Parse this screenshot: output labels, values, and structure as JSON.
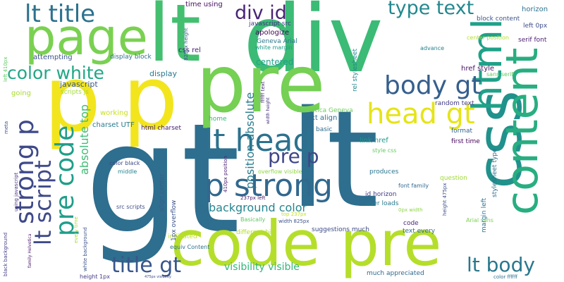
{
  "words": [
    {
      "text": "gt",
      "weight": 1.0,
      "color": "#2e6e8e"
    },
    {
      "text": "lt",
      "weight": 0.97,
      "color": "#2e6e8e"
    },
    {
      "text": "div",
      "weight": 0.9,
      "color": "#3bbb75"
    },
    {
      "text": "p",
      "weight": 0.85,
      "color": "#f2e51d"
    },
    {
      "text": "p",
      "weight": 0.82,
      "color": "#f2e51d"
    },
    {
      "text": "pre",
      "weight": 0.78,
      "color": "#75d054"
    },
    {
      "text": "lt",
      "weight": 0.75,
      "color": "#44bf70"
    },
    {
      "text": "code pre",
      "weight": 0.7,
      "color": "#b5de2b"
    },
    {
      "text": "css",
      "weight": 0.68,
      "color": "#21918c"
    },
    {
      "text": "page",
      "weight": 0.6,
      "color": "#7ad151"
    },
    {
      "text": "html",
      "weight": 0.55,
      "color": "#1fa188"
    },
    {
      "text": "content",
      "weight": 0.52,
      "color": "#28ae80"
    },
    {
      "text": "lt head",
      "weight": 0.45,
      "color": "#2c728e"
    },
    {
      "text": "p strong",
      "weight": 0.45,
      "color": "#31688e"
    },
    {
      "text": "head gt",
      "weight": 0.4,
      "color": "#e5e419"
    },
    {
      "text": "body gt",
      "weight": 0.38,
      "color": "#355f8d"
    },
    {
      "text": "lt title",
      "weight": 0.36,
      "color": "#2c728e"
    },
    {
      "text": "strong p",
      "weight": 0.36,
      "color": "#3e4989"
    },
    {
      "text": "pre code",
      "weight": 0.34,
      "color": "#1f9e89"
    },
    {
      "text": "lt script",
      "weight": 0.3,
      "color": "#3e4a89"
    },
    {
      "text": "title gt",
      "weight": 0.3,
      "color": "#39568c"
    },
    {
      "text": "pre p",
      "weight": 0.28,
      "color": "#3f4788"
    },
    {
      "text": "lt body",
      "weight": 0.28,
      "color": "#2a788e"
    },
    {
      "text": "div id",
      "weight": 0.27,
      "color": "#482475"
    },
    {
      "text": "type text",
      "weight": 0.27,
      "color": "#23888e"
    },
    {
      "text": "color white",
      "weight": 0.26,
      "color": "#22a785"
    },
    {
      "text": "background color",
      "weight": 0.2,
      "color": "#25858e"
    },
    {
      "text": "position absolute",
      "weight": 0.2,
      "color": "#287c8e"
    },
    {
      "text": "absolute top",
      "weight": 0.2,
      "color": "#3dbc74"
    },
    {
      "text": "visibility visible",
      "weight": 0.18,
      "color": "#32b67a"
    },
    {
      "text": "time using",
      "weight": 0.1,
      "color": "#470e61"
    },
    {
      "text": "horizon",
      "weight": 0.1,
      "color": "#2c738e"
    },
    {
      "text": "javascript src",
      "weight": 0.09,
      "color": "#443a83"
    },
    {
      "text": "apologize",
      "weight": 0.1,
      "color": "#450457"
    },
    {
      "text": "Geneva Arial",
      "weight": 0.08,
      "color": "#2a788e"
    },
    {
      "text": "white margin",
      "weight": 0.08,
      "color": "#1e9c89"
    },
    {
      "text": "block content",
      "weight": 0.09,
      "color": "#3b528b"
    },
    {
      "text": "left 0px",
      "weight": 0.09,
      "color": "#3e4c8a"
    },
    {
      "text": "center position",
      "weight": 0.08,
      "color": "#b5de2b"
    },
    {
      "text": "serif font",
      "weight": 0.09,
      "color": "#481b6d"
    },
    {
      "text": "rel stylesheet",
      "weight": 0.09,
      "color": "#23888e"
    },
    {
      "text": "css rel",
      "weight": 0.1,
      "color": "#482173"
    },
    {
      "text": "centered",
      "weight": 0.12,
      "color": "#1fa188"
    },
    {
      "text": "advance",
      "weight": 0.08,
      "color": "#27808e"
    },
    {
      "text": "display block",
      "weight": 0.09,
      "color": "#2e6f8e"
    },
    {
      "text": "attempting",
      "weight": 0.1,
      "color": "#3b528b"
    },
    {
      "text": "javascript",
      "weight": 0.11,
      "color": "#38588c"
    },
    {
      "text": "scripts js",
      "weight": 0.09,
      "color": "#a2da37"
    },
    {
      "text": "display",
      "weight": 0.11,
      "color": "#29798e"
    },
    {
      "text": "going",
      "weight": 0.1,
      "color": "#a8db34"
    },
    {
      "text": "working",
      "weight": 0.1,
      "color": "#c8e020"
    },
    {
      "text": "charset UTF",
      "weight": 0.1,
      "color": "#297b8e"
    },
    {
      "text": "html charset",
      "weight": 0.09,
      "color": "#482071"
    },
    {
      "text": "home",
      "weight": 0.09,
      "color": "#35b779"
    },
    {
      "text": "Helvetica Geneva",
      "weight": 0.09,
      "color": "#6ccd5a"
    },
    {
      "text": "text align",
      "weight": 0.1,
      "color": "#2f6c8e"
    },
    {
      "text": "basic",
      "weight": 0.08,
      "color": "#2f6b8e"
    },
    {
      "text": "href style",
      "weight": 0.1,
      "color": "#471365"
    },
    {
      "text": "sans serif",
      "weight": 0.08,
      "color": "#60ca60"
    },
    {
      "text": "random text",
      "weight": 0.09,
      "color": "#443983"
    },
    {
      "text": "format",
      "weight": 0.09,
      "color": "#32648e"
    },
    {
      "text": "link href",
      "weight": 0.1,
      "color": "#1f978b"
    },
    {
      "text": "first time",
      "weight": 0.09,
      "color": "#46085c"
    },
    {
      "text": "stylesheet type",
      "weight": 0.09,
      "color": "#2e6e8e"
    },
    {
      "text": "style css",
      "weight": 0.08,
      "color": "#65cb5e"
    },
    {
      "text": "question",
      "weight": 0.09,
      "color": "#a0da39"
    },
    {
      "text": "color black",
      "weight": 0.08,
      "color": "#3e4989"
    },
    {
      "text": "middle",
      "weight": 0.08,
      "color": "#25848e"
    },
    {
      "text": "produces",
      "weight": 0.09,
      "color": "#2b748e"
    },
    {
      "text": "overflow visible",
      "weight": 0.08,
      "color": "#8ed645"
    },
    {
      "text": "font family",
      "weight": 0.08,
      "color": "#31688e"
    },
    {
      "text": "id horizon",
      "weight": 0.09,
      "color": "#433d84"
    },
    {
      "text": "user loads",
      "weight": 0.09,
      "color": "#297a8e"
    },
    {
      "text": "0px width",
      "weight": 0.07,
      "color": "#8ed645"
    },
    {
      "text": "height 475px",
      "weight": 0.07,
      "color": "#3c4f8a"
    },
    {
      "text": "237px left",
      "weight": 0.07,
      "color": "#481c6e"
    },
    {
      "text": "top 237px",
      "weight": 0.07,
      "color": "#c0df25"
    },
    {
      "text": "width 825px",
      "weight": 0.07,
      "color": "#3b528b"
    },
    {
      "text": "Basically",
      "weight": 0.08,
      "color": "#5ec962"
    },
    {
      "text": "code",
      "weight": 0.09,
      "color": "#482878"
    },
    {
      "text": "text every",
      "weight": 0.09,
      "color": "#2f6c8e"
    },
    {
      "text": "Arial sans",
      "weight": 0.08,
      "color": "#7ad151"
    },
    {
      "text": "margin left",
      "weight": 0.09,
      "color": "#2c728e"
    },
    {
      "text": "different bit",
      "weight": 0.09,
      "color": "#b2dd2d"
    },
    {
      "text": "indicated",
      "weight": 0.09,
      "color": "#c2df23"
    },
    {
      "text": "equiv Content",
      "weight": 0.08,
      "color": "#2c728e"
    },
    {
      "text": "suggestions much",
      "weight": 0.09,
      "color": "#3e4c8a"
    },
    {
      "text": "much appreciated",
      "weight": 0.09,
      "color": "#30698e"
    },
    {
      "text": "color ffffff",
      "weight": 0.06,
      "color": "#2c718e"
    },
    {
      "text": "height 1px",
      "weight": 0.08,
      "color": "#433e85"
    },
    {
      "text": "475px visibility",
      "weight": 0.05,
      "color": "#3f4889"
    },
    {
      "text": "align center",
      "weight": 0.09,
      "color": "#355f8d"
    },
    {
      "text": "1px overflow",
      "weight": 0.09,
      "color": "#3a548c"
    },
    {
      "text": "src scripts",
      "weight": 0.08,
      "color": "#3d4e8a"
    },
    {
      "text": "410px position",
      "weight": 0.07,
      "color": "#482173"
    },
    {
      "text": "ffffff text",
      "weight": 0.07,
      "color": "#482878"
    },
    {
      "text": "width height",
      "weight": 0.06,
      "color": "#472f7d"
    },
    {
      "text": "825px height",
      "weight": 0.07,
      "color": "#355e8d"
    },
    {
      "text": "left 410px",
      "weight": 0.07,
      "color": "#5ec962"
    },
    {
      "text": "meta",
      "weight": 0.07,
      "color": "#3b528b"
    },
    {
      "text": "black background",
      "weight": 0.07,
      "color": "#433e85"
    },
    {
      "text": "using javascript",
      "weight": 0.07,
      "color": "#46327e"
    },
    {
      "text": "family Helvetica",
      "weight": 0.06,
      "color": "#481a6c"
    },
    {
      "text": "every time",
      "weight": 0.07,
      "color": "#a5db36"
    },
    {
      "text": "white background",
      "weight": 0.07,
      "color": "#3a538b"
    }
  ]
}
